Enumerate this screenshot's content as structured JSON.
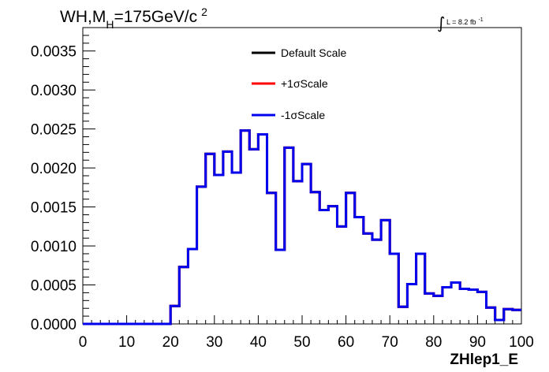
{
  "chart_data": {
    "type": "line",
    "drawstyle": "steps",
    "title": {
      "prefix": "WH,M",
      "subscript": "H",
      "middle": "=175GeV/c",
      "superscript": "2"
    },
    "luminosity": {
      "symbol": "∫",
      "text": "L = 8.2 fb",
      "superscript": "-1"
    },
    "xlabel": "ZHlep1_E",
    "ylabel": "",
    "xlim": [
      0,
      100
    ],
    "ylim": [
      0,
      0.0038
    ],
    "xticks": [
      0,
      10,
      20,
      30,
      40,
      50,
      60,
      70,
      80,
      90,
      100
    ],
    "xtick_labels": [
      "0",
      "10",
      "20",
      "30",
      "40",
      "50",
      "60",
      "70",
      "80",
      "90",
      "100"
    ],
    "yticks": [
      0,
      0.0005,
      0.001,
      0.0015,
      0.002,
      0.0025,
      0.003,
      0.0035
    ],
    "ytick_labels": [
      "0.0000",
      "0.0005",
      "0.0010",
      "0.0015",
      "0.0020",
      "0.0025",
      "0.0030",
      "0.0035"
    ],
    "grid": false,
    "legend_position": "top-center",
    "bin_edges": [
      0,
      2,
      4,
      6,
      8,
      10,
      12,
      14,
      16,
      18,
      20,
      22,
      24,
      26,
      28,
      30,
      32,
      34,
      36,
      38,
      40,
      42,
      44,
      46,
      48,
      50,
      52,
      54,
      56,
      58,
      60,
      62,
      64,
      66,
      68,
      70,
      72,
      74,
      76,
      78,
      80,
      82,
      84,
      86,
      88,
      90,
      92,
      94,
      96,
      98,
      100
    ],
    "series": [
      {
        "name": "Default Scale",
        "color": "#000000",
        "values": [
          0,
          0,
          0,
          0,
          0,
          0,
          0,
          0,
          0,
          0,
          0.00023,
          0.00073,
          0.00096,
          0.00176,
          0.00218,
          0.00191,
          0.00221,
          0.00194,
          0.00248,
          0.00224,
          0.00243,
          0.00168,
          0.00095,
          0.00226,
          0.00183,
          0.00205,
          0.00169,
          0.00146,
          0.00151,
          0.00125,
          0.00168,
          0.00137,
          0.00116,
          0.00108,
          0.00133,
          0.0009,
          0.00022,
          0.00051,
          0.0009,
          0.00039,
          0.00036,
          0.00047,
          0.00053,
          0.00045,
          0.00044,
          0.00041,
          0.00021,
          5e-05,
          0.00019,
          0.00018
        ]
      },
      {
        "name": "+1σScale",
        "color": "#ff0000",
        "values": [
          0,
          0,
          0,
          0,
          0,
          0,
          0,
          0,
          0,
          0,
          0.00023,
          0.00073,
          0.00096,
          0.00176,
          0.00218,
          0.00191,
          0.00221,
          0.00194,
          0.00248,
          0.00224,
          0.00243,
          0.00168,
          0.00095,
          0.00226,
          0.00183,
          0.00205,
          0.00169,
          0.00146,
          0.00151,
          0.00125,
          0.00168,
          0.00137,
          0.00116,
          0.00108,
          0.00133,
          0.0009,
          0.00022,
          0.00051,
          0.0009,
          0.00039,
          0.00036,
          0.00047,
          0.00053,
          0.00045,
          0.00044,
          0.00041,
          0.00021,
          5e-05,
          0.00019,
          0.00018
        ]
      },
      {
        "name": "-1σScale",
        "color": "#0000ee",
        "values": [
          0,
          0,
          0,
          0,
          0,
          0,
          0,
          0,
          0,
          0,
          0.00023,
          0.00073,
          0.00096,
          0.00176,
          0.00218,
          0.00191,
          0.00221,
          0.00194,
          0.00248,
          0.00224,
          0.00243,
          0.00168,
          0.00095,
          0.00226,
          0.00183,
          0.00205,
          0.00169,
          0.00146,
          0.00151,
          0.00125,
          0.00168,
          0.00137,
          0.00116,
          0.00108,
          0.00133,
          0.0009,
          0.00022,
          0.00051,
          0.0009,
          0.00039,
          0.00036,
          0.00047,
          0.00053,
          0.00045,
          0.00044,
          0.00041,
          0.00021,
          5e-05,
          0.00019,
          0.00018
        ]
      }
    ]
  }
}
